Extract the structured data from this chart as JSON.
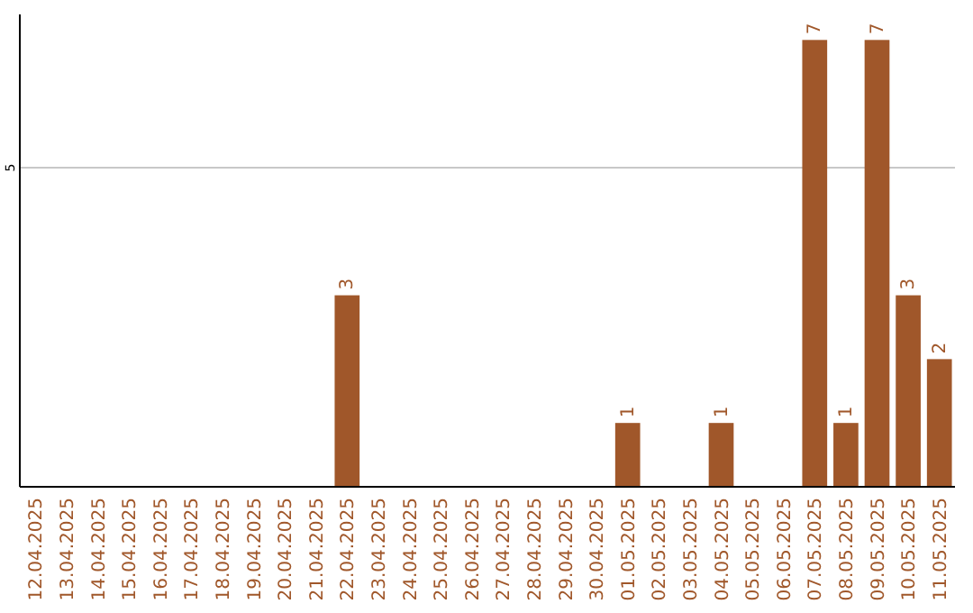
{
  "chart_data": {
    "type": "bar",
    "categories": [
      "12.04.2025",
      "13.04.2025",
      "14.04.2025",
      "15.04.2025",
      "16.04.2025",
      "17.04.2025",
      "18.04.2025",
      "19.04.2025",
      "20.04.2025",
      "21.04.2025",
      "22.04.2025",
      "23.04.2025",
      "24.04.2025",
      "25.04.2025",
      "26.04.2025",
      "27.04.2025",
      "28.04.2025",
      "29.04.2025",
      "30.04.2025",
      "01.05.2025",
      "02.05.2025",
      "03.05.2025",
      "04.05.2025",
      "05.05.2025",
      "06.05.2025",
      "07.05.2025",
      "08.05.2025",
      "09.05.2025",
      "10.05.2025",
      "11.05.2025"
    ],
    "values": [
      0,
      0,
      0,
      0,
      0,
      0,
      0,
      0,
      0,
      0,
      3,
      0,
      0,
      0,
      0,
      0,
      0,
      0,
      0,
      1,
      0,
      0,
      1,
      0,
      0,
      7,
      1,
      7,
      3,
      2
    ],
    "value_labels": [
      null,
      null,
      null,
      null,
      null,
      null,
      null,
      null,
      null,
      null,
      "3",
      null,
      null,
      null,
      null,
      null,
      null,
      null,
      null,
      "1",
      null,
      null,
      "1",
      null,
      null,
      "7",
      "1",
      "7",
      "3",
      "2"
    ],
    "color": "#a0572a",
    "ylim": [
      0,
      7.4
    ],
    "yticks": [
      5
    ],
    "grid": "y"
  }
}
